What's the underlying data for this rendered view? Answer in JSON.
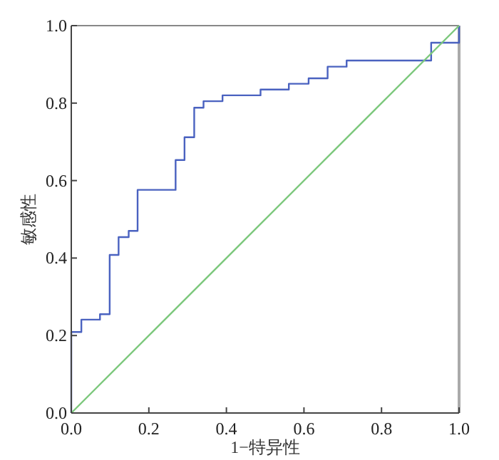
{
  "chart_data": {
    "type": "step",
    "xlabel": "1−特异性",
    "ylabel": "敏感性",
    "xlim": [
      0,
      1
    ],
    "ylim": [
      0,
      1
    ],
    "xticks": [
      {
        "value": 0,
        "label": "0.0"
      },
      {
        "value": 0.2,
        "label": "0.2"
      },
      {
        "value": 0.4,
        "label": "0.4"
      },
      {
        "value": 0.6,
        "label": "0.6"
      },
      {
        "value": 0.8,
        "label": "0.8"
      },
      {
        "value": 1,
        "label": "1.0"
      }
    ],
    "yticks": [
      {
        "value": 0,
        "label": "0.0"
      },
      {
        "value": 0.2,
        "label": "0.2"
      },
      {
        "value": 0.4,
        "label": "0.4"
      },
      {
        "value": 0.6,
        "label": "0.6"
      },
      {
        "value": 0.8,
        "label": "0.8"
      },
      {
        "value": 1,
        "label": "1.0"
      }
    ],
    "grid": false,
    "series": [
      {
        "color": "#4a62c0",
        "x": [
          0,
          0,
          0.026,
          0.074,
          0.099,
          0.122,
          0.148,
          0.171,
          0.269,
          0.292,
          0.317,
          0.341,
          0.39,
          0.488,
          0.561,
          0.612,
          0.661,
          0.71,
          0.928,
          1
        ],
        "values": [
          0,
          0.209,
          0.241,
          0.255,
          0.408,
          0.454,
          0.47,
          0.576,
          0.653,
          0.712,
          0.788,
          0.805,
          0.82,
          0.835,
          0.85,
          0.864,
          0.894,
          0.91,
          0.956,
          1
        ]
      },
      {
        "type": "line",
        "color": "#7cc87c",
        "x": [
          0,
          1
        ],
        "values": [
          0,
          1
        ]
      }
    ]
  }
}
